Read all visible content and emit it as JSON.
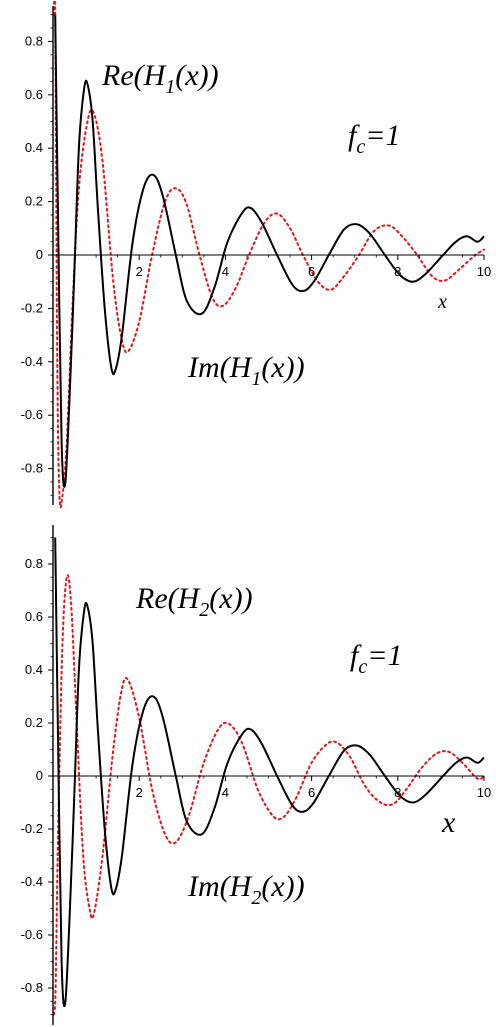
{
  "chart_data": [
    {
      "type": "line",
      "title": "",
      "xlabel": "x",
      "ylabel": "",
      "xlim": [
        0,
        10
      ],
      "ylim": [
        -0.95,
        0.95
      ],
      "x_ticks": [
        "2",
        "4",
        "6",
        "8",
        "10"
      ],
      "y_ticks": [
        "0.8",
        "0.6",
        "0.4",
        "0.2",
        "0",
        "-0.2",
        "-0.4",
        "-0.6",
        "-0.8"
      ],
      "annotations": {
        "re_label": {
          "base": "Re(H",
          "sub": "1",
          "tail": "(x))"
        },
        "im_label": {
          "base": "Im(H",
          "sub": "1",
          "tail": "(x))"
        },
        "fc_label": {
          "base": "f",
          "sub": "c",
          "tail": "=1"
        }
      },
      "series": [
        {
          "label": "Re(H1(x))",
          "color": "#000000",
          "style": "solid",
          "points": [
            [
              0.05,
              0.9
            ],
            [
              0.12,
              0.1
            ],
            [
              0.2,
              -0.7
            ],
            [
              0.28,
              -0.86
            ],
            [
              0.38,
              -0.55
            ],
            [
              0.5,
              -0.05
            ],
            [
              0.6,
              0.4
            ],
            [
              0.72,
              0.62
            ],
            [
              0.8,
              0.64
            ],
            [
              0.92,
              0.5
            ],
            [
              1.05,
              0.15
            ],
            [
              1.2,
              -0.2
            ],
            [
              1.35,
              -0.42
            ],
            [
              1.45,
              -0.43
            ],
            [
              1.6,
              -0.3
            ],
            [
              1.85,
              0.05
            ],
            [
              2.1,
              0.25
            ],
            [
              2.33,
              0.3
            ],
            [
              2.55,
              0.22
            ],
            [
              2.85,
              0.0
            ],
            [
              3.1,
              -0.17
            ],
            [
              3.45,
              -0.22
            ],
            [
              3.75,
              -0.12
            ],
            [
              4.05,
              0.05
            ],
            [
              4.4,
              0.16
            ],
            [
              4.6,
              0.175
            ],
            [
              4.85,
              0.12
            ],
            [
              5.2,
              0.0
            ],
            [
              5.55,
              -0.11
            ],
            [
              5.8,
              -0.135
            ],
            [
              6.05,
              -0.1
            ],
            [
              6.4,
              0.0
            ],
            [
              6.75,
              0.095
            ],
            [
              7.05,
              0.115
            ],
            [
              7.35,
              0.08
            ],
            [
              7.7,
              0.0
            ],
            [
              8.05,
              -0.075
            ],
            [
              8.35,
              -0.1
            ],
            [
              8.65,
              -0.07
            ],
            [
              9.05,
              0.0
            ],
            [
              9.35,
              0.05
            ],
            [
              9.6,
              0.07
            ],
            [
              9.85,
              0.05
            ],
            [
              10,
              0.07
            ]
          ]
        },
        {
          "label": "Im(H1(x))",
          "color": "#e8141c",
          "style": "dotted",
          "points": [
            [
              0.02,
              0.9
            ],
            [
              0.05,
              0.9
            ],
            [
              0.1,
              -0.4
            ],
            [
              0.15,
              -0.9
            ],
            [
              0.22,
              -0.9
            ],
            [
              0.32,
              -0.7
            ],
            [
              0.45,
              -0.2
            ],
            [
              0.6,
              0.25
            ],
            [
              0.8,
              0.5
            ],
            [
              0.95,
              0.53
            ],
            [
              1.15,
              0.35
            ],
            [
              1.4,
              -0.1
            ],
            [
              1.6,
              -0.32
            ],
            [
              1.75,
              -0.36
            ],
            [
              2.0,
              -0.25
            ],
            [
              2.3,
              0.0
            ],
            [
              2.6,
              0.2
            ],
            [
              2.85,
              0.25
            ],
            [
              3.1,
              0.19
            ],
            [
              3.4,
              0.0
            ],
            [
              3.7,
              -0.16
            ],
            [
              3.95,
              -0.19
            ],
            [
              4.25,
              -0.12
            ],
            [
              4.55,
              0.0
            ],
            [
              4.9,
              0.12
            ],
            [
              5.2,
              0.155
            ],
            [
              5.5,
              0.1
            ],
            [
              5.8,
              0.0
            ],
            [
              6.15,
              -0.1
            ],
            [
              6.45,
              -0.13
            ],
            [
              6.75,
              -0.08
            ],
            [
              7.1,
              0.0
            ],
            [
              7.45,
              0.09
            ],
            [
              7.8,
              0.11
            ],
            [
              8.1,
              0.07
            ],
            [
              8.45,
              0.0
            ],
            [
              8.8,
              -0.08
            ],
            [
              9.1,
              -0.095
            ],
            [
              9.45,
              -0.05
            ],
            [
              9.8,
              0.0
            ],
            [
              10,
              0.02
            ]
          ]
        }
      ]
    },
    {
      "type": "line",
      "title": "",
      "xlabel": "x",
      "ylabel": "",
      "xlim": [
        0,
        10
      ],
      "ylim": [
        -0.95,
        0.95
      ],
      "x_ticks": [
        "2",
        "4",
        "6",
        "8",
        "10"
      ],
      "y_ticks": [
        "0.8",
        "0.6",
        "0.4",
        "0.2",
        "0",
        "-0.2",
        "-0.4",
        "-0.6",
        "-0.8"
      ],
      "annotations": {
        "re_label": {
          "base": "Re(H",
          "sub": "2",
          "tail": "(x))"
        },
        "im_label": {
          "base": "Im(H",
          "sub": "2",
          "tail": "(x))"
        },
        "fc_label": {
          "base": "f",
          "sub": "c",
          "tail": "=1"
        }
      },
      "series": [
        {
          "label": "Re(H2(x))",
          "color": "#000000",
          "style": "solid",
          "points": [
            [
              0.05,
              0.9
            ],
            [
              0.12,
              0.1
            ],
            [
              0.2,
              -0.7
            ],
            [
              0.28,
              -0.86
            ],
            [
              0.38,
              -0.55
            ],
            [
              0.5,
              -0.05
            ],
            [
              0.6,
              0.4
            ],
            [
              0.72,
              0.62
            ],
            [
              0.8,
              0.64
            ],
            [
              0.92,
              0.5
            ],
            [
              1.05,
              0.15
            ],
            [
              1.2,
              -0.2
            ],
            [
              1.35,
              -0.42
            ],
            [
              1.45,
              -0.43
            ],
            [
              1.6,
              -0.3
            ],
            [
              1.85,
              0.05
            ],
            [
              2.1,
              0.25
            ],
            [
              2.33,
              0.3
            ],
            [
              2.55,
              0.22
            ],
            [
              2.85,
              0.0
            ],
            [
              3.1,
              -0.17
            ],
            [
              3.45,
              -0.22
            ],
            [
              3.75,
              -0.12
            ],
            [
              4.05,
              0.05
            ],
            [
              4.4,
              0.16
            ],
            [
              4.6,
              0.175
            ],
            [
              4.85,
              0.12
            ],
            [
              5.2,
              0.0
            ],
            [
              5.55,
              -0.11
            ],
            [
              5.8,
              -0.135
            ],
            [
              6.05,
              -0.1
            ],
            [
              6.4,
              0.0
            ],
            [
              6.75,
              0.095
            ],
            [
              7.05,
              0.115
            ],
            [
              7.35,
              0.08
            ],
            [
              7.7,
              0.0
            ],
            [
              8.05,
              -0.075
            ],
            [
              8.35,
              -0.1
            ],
            [
              8.65,
              -0.07
            ],
            [
              9.05,
              0.0
            ],
            [
              9.35,
              0.05
            ],
            [
              9.6,
              0.07
            ],
            [
              9.85,
              0.05
            ],
            [
              10,
              0.07
            ]
          ]
        },
        {
          "label": "Im(H2(x))",
          "color": "#e8141c",
          "style": "dotted",
          "points": [
            [
              0.02,
              -0.9
            ],
            [
              0.06,
              -0.8
            ],
            [
              0.12,
              -0.2
            ],
            [
              0.22,
              0.5
            ],
            [
              0.32,
              0.75
            ],
            [
              0.42,
              0.65
            ],
            [
              0.55,
              0.2
            ],
            [
              0.7,
              -0.3
            ],
            [
              0.85,
              -0.5
            ],
            [
              0.95,
              -0.52
            ],
            [
              1.15,
              -0.3
            ],
            [
              1.4,
              0.1
            ],
            [
              1.6,
              0.33
            ],
            [
              1.75,
              0.36
            ],
            [
              2.0,
              0.22
            ],
            [
              2.3,
              -0.05
            ],
            [
              2.6,
              -0.22
            ],
            [
              2.85,
              -0.25
            ],
            [
              3.15,
              -0.15
            ],
            [
              3.5,
              0.05
            ],
            [
              3.85,
              0.18
            ],
            [
              4.1,
              0.195
            ],
            [
              4.4,
              0.12
            ],
            [
              4.75,
              -0.05
            ],
            [
              5.1,
              -0.15
            ],
            [
              5.35,
              -0.155
            ],
            [
              5.65,
              -0.08
            ],
            [
              6.0,
              0.05
            ],
            [
              6.35,
              0.12
            ],
            [
              6.6,
              0.125
            ],
            [
              6.9,
              0.07
            ],
            [
              7.25,
              -0.04
            ],
            [
              7.6,
              -0.1
            ],
            [
              7.9,
              -0.105
            ],
            [
              8.2,
              -0.05
            ],
            [
              8.55,
              0.03
            ],
            [
              8.9,
              0.085
            ],
            [
              9.2,
              0.09
            ],
            [
              9.5,
              0.05
            ],
            [
              9.85,
              -0.01
            ],
            [
              10,
              0.0
            ]
          ]
        }
      ]
    }
  ]
}
